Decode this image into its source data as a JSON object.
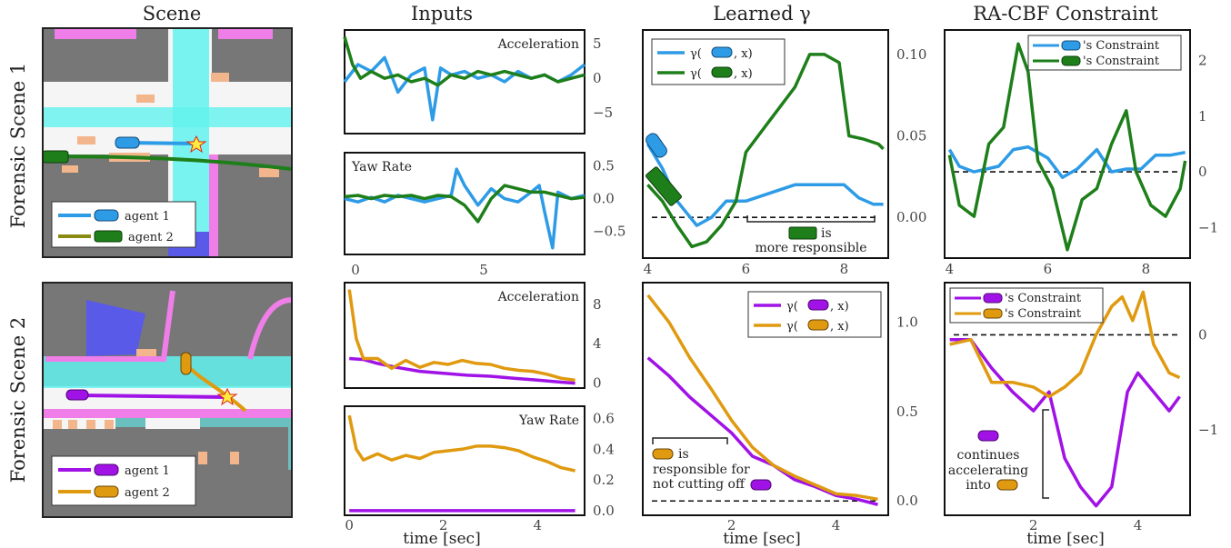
{
  "column_titles": [
    "Scene",
    "Inputs",
    "Learned γ",
    "RA-CBF Constraint"
  ],
  "row_titles": [
    "Forensic Scene 1",
    "Forensic Scene 2"
  ],
  "xlabel": "time [sec]",
  "colors": {
    "blue": "#2e9be6",
    "green": "#1e7f1a",
    "purple": "#a012e6",
    "orange": "#e09a10",
    "ground": "#777777",
    "cyan": "#62f2ee",
    "magenta": "#ef7ee8",
    "road": "#f5f5f5"
  },
  "scene_legends": [
    {
      "items": [
        "agent 1",
        "agent 2"
      ]
    },
    {
      "items": [
        "agent 1",
        "agent 2"
      ]
    }
  ],
  "annotations": {
    "s1_gamma": [
      "is",
      "more responsible"
    ],
    "s2_gamma": [
      "is",
      "responsible for",
      "not cutting off"
    ],
    "s2_cbf": [
      "continues",
      "accelerating",
      "into"
    ]
  },
  "chart_data": [
    {
      "id": "s1_accel",
      "type": "line",
      "title": "Acceleration",
      "xlim": [
        0,
        9
      ],
      "ylim": [
        -8,
        7
      ],
      "yticks": [
        5,
        0,
        -5
      ],
      "ytick_labels": [
        "5",
        "0",
        "−5"
      ],
      "series": [
        {
          "color": "blue",
          "x": [
            0,
            0.5,
            1,
            1.5,
            2,
            2.5,
            3,
            3.3,
            3.6,
            4,
            4.5,
            5,
            5.5,
            6,
            6.5,
            7,
            7.5,
            8,
            8.5,
            9
          ],
          "y": [
            -0.5,
            2,
            1,
            3,
            -2,
            0.5,
            1.5,
            -6,
            1.5,
            0.5,
            1,
            0,
            0.5,
            -0.5,
            1,
            0,
            0.5,
            -0.5,
            0.5,
            2
          ]
        },
        {
          "color": "green",
          "x": [
            0,
            0.3,
            0.6,
            1,
            1.5,
            2,
            2.5,
            3,
            3.5,
            4,
            4.5,
            5,
            5.5,
            6,
            6.5,
            7,
            7.5,
            8,
            8.5,
            9
          ],
          "y": [
            6,
            2,
            0,
            1,
            0,
            0.5,
            -0.5,
            0,
            -1,
            0.5,
            0,
            1,
            0.5,
            1,
            0.5,
            0,
            0.5,
            -0.5,
            0,
            0.5
          ]
        }
      ]
    },
    {
      "id": "s1_yaw",
      "type": "line",
      "title": "Yaw Rate",
      "xlim": [
        0,
        9
      ],
      "ylim": [
        -0.85,
        0.7
      ],
      "yticks": [
        0.5,
        0.0,
        -0.5
      ],
      "ytick_labels": [
        "0.5",
        "0.0",
        "−0.5"
      ],
      "series": [
        {
          "color": "blue",
          "x": [
            0,
            0.5,
            1,
            1.5,
            2,
            2.5,
            3,
            3.5,
            4,
            4.2,
            4.5,
            5,
            5.5,
            6,
            6.5,
            7,
            7.3,
            7.5,
            7.8,
            8,
            8.5,
            9
          ],
          "y": [
            0,
            -0.05,
            0.02,
            -0.05,
            0.05,
            0,
            -0.05,
            0,
            0.05,
            0.45,
            0.2,
            -0.1,
            0.15,
            0,
            -0.05,
            0.1,
            0.2,
            -0.2,
            -0.75,
            0.1,
            0,
            0.05
          ]
        },
        {
          "color": "green",
          "x": [
            0,
            0.5,
            1,
            1.5,
            2,
            2.5,
            3,
            3.5,
            4,
            4.5,
            5,
            5.5,
            6,
            6.5,
            7,
            7.5,
            8,
            8.5,
            9
          ],
          "y": [
            0.03,
            0.05,
            0,
            0.05,
            0.03,
            0.05,
            0,
            0.05,
            0.03,
            -0.1,
            -0.35,
            0,
            0.2,
            0.15,
            0.1,
            0.1,
            0.05,
            0,
            0.02
          ]
        }
      ]
    },
    {
      "id": "s1_gamma",
      "type": "line",
      "xlim": [
        3.9,
        8.9
      ],
      "ylim": [
        -0.025,
        0.115
      ],
      "xticks": [
        4,
        6,
        8
      ],
      "yticks": [
        0.1,
        0.05,
        0.0
      ],
      "ytick_labels": [
        "0.10",
        "0.05",
        "0.00"
      ],
      "legend": [
        "γ(",
        ", x)"
      ],
      "threshold": 0.0,
      "series": [
        {
          "color": "blue",
          "x": [
            4,
            4.3,
            4.6,
            5,
            5.3,
            5.6,
            6,
            6.5,
            7,
            7.5,
            8,
            8.3,
            8.6,
            8.8
          ],
          "y": [
            0.045,
            0.03,
            0.01,
            -0.005,
            0.0,
            0.01,
            0.01,
            0.015,
            0.02,
            0.02,
            0.02,
            0.012,
            0.008,
            0.008
          ]
        },
        {
          "color": "green",
          "x": [
            4,
            4.3,
            4.6,
            4.9,
            5.2,
            5.5,
            5.8,
            6,
            6.5,
            7,
            7.3,
            7.6,
            7.9,
            8.1,
            8.4,
            8.7,
            8.8
          ],
          "y": [
            0.02,
            0.01,
            -0.005,
            -0.018,
            -0.015,
            -0.005,
            0.01,
            0.04,
            0.06,
            0.08,
            0.1,
            0.1,
            0.095,
            0.05,
            0.048,
            0.045,
            0.042
          ]
        }
      ]
    },
    {
      "id": "s1_cbf",
      "type": "line",
      "xlim": [
        3.9,
        8.9
      ],
      "ylim": [
        -1.55,
        2.55
      ],
      "xticks": [
        4,
        6,
        8
      ],
      "yticks": [
        2,
        1,
        0,
        -1
      ],
      "ytick_labels": [
        "2",
        "1",
        "0",
        "−1"
      ],
      "legend": [
        "'s Constraint",
        "'s Constraint"
      ],
      "threshold": 0.0,
      "series": [
        {
          "color": "blue",
          "x": [
            4,
            4.2,
            4.5,
            5,
            5.3,
            5.6,
            6,
            6.3,
            6.6,
            7,
            7.3,
            7.6,
            7.9,
            8.2,
            8.5,
            8.8
          ],
          "y": [
            0.4,
            0.1,
            0,
            0.1,
            0.4,
            0.45,
            0.25,
            -0.1,
            0.05,
            0.4,
            0,
            0.05,
            0.05,
            0.3,
            0.3,
            0.35
          ]
        },
        {
          "color": "green",
          "x": [
            4,
            4.2,
            4.5,
            4.8,
            5.1,
            5.4,
            5.6,
            5.8,
            6.1,
            6.4,
            6.7,
            7,
            7.3,
            7.6,
            7.8,
            8.1,
            8.4,
            8.7,
            8.8
          ],
          "y": [
            0.3,
            -0.6,
            -0.8,
            0.5,
            0.8,
            2.3,
            1.8,
            0.2,
            -0.3,
            -1.4,
            -0.5,
            -0.3,
            0.5,
            1.1,
            0,
            -0.6,
            -0.8,
            -0.3,
            0.2
          ]
        }
      ]
    },
    {
      "id": "s2_accel",
      "type": "line",
      "title": "Acceleration",
      "xlim": [
        -0.1,
        5.0
      ],
      "ylim": [
        -0.5,
        10.2
      ],
      "yticks": [
        8,
        4,
        0
      ],
      "ytick_labels": [
        "8",
        "4",
        "0"
      ],
      "series": [
        {
          "color": "purple",
          "x": [
            0,
            0.3,
            0.6,
            1,
            1.5,
            2,
            2.5,
            3,
            3.5,
            4,
            4.5,
            4.8
          ],
          "y": [
            2.5,
            2.4,
            2.0,
            1.6,
            1.2,
            1.0,
            0.8,
            0.7,
            0.5,
            0.3,
            0.1,
            0.0
          ]
        },
        {
          "color": "orange",
          "x": [
            0,
            0.15,
            0.3,
            0.6,
            0.9,
            1.2,
            1.5,
            1.8,
            2.1,
            2.4,
            2.7,
            3,
            3.3,
            3.6,
            3.9,
            4.2,
            4.5,
            4.8
          ],
          "y": [
            9.5,
            4.5,
            2.5,
            2.5,
            1.5,
            2.3,
            1.6,
            2.1,
            1.9,
            2.3,
            2.0,
            1.9,
            1.5,
            1.3,
            1.2,
            0.9,
            0.5,
            0.3
          ]
        }
      ]
    },
    {
      "id": "s2_yaw",
      "type": "line",
      "title": "Yaw Rate",
      "xlim": [
        -0.1,
        5.0
      ],
      "ylim": [
        -0.03,
        0.68
      ],
      "yticks": [
        0.6,
        0.4,
        0.2,
        0.0
      ],
      "ytick_labels": [
        "0.6",
        "0.4",
        "0.2",
        "0.0"
      ],
      "series": [
        {
          "color": "purple",
          "x": [
            0,
            4.8
          ],
          "y": [
            0.0,
            0.0
          ]
        },
        {
          "color": "orange",
          "x": [
            0,
            0.15,
            0.3,
            0.6,
            0.9,
            1.2,
            1.5,
            1.8,
            2.1,
            2.4,
            2.7,
            3,
            3.3,
            3.6,
            3.9,
            4.2,
            4.5,
            4.8
          ],
          "y": [
            0.62,
            0.4,
            0.33,
            0.37,
            0.33,
            0.36,
            0.34,
            0.38,
            0.39,
            0.4,
            0.42,
            0.42,
            0.41,
            0.39,
            0.35,
            0.32,
            0.28,
            0.26
          ]
        }
      ]
    },
    {
      "id": "s2_gamma",
      "type": "line",
      "xlim": [
        0.3,
        5.0
      ],
      "ylim": [
        -0.08,
        1.22
      ],
      "xticks": [
        2,
        4
      ],
      "yticks": [
        1.0,
        0.5,
        0.0
      ],
      "ytick_labels": [
        "1.0",
        "0.5",
        "0.0"
      ],
      "legend": [
        "γ(",
        ", x)"
      ],
      "threshold": 0.0,
      "series": [
        {
          "color": "purple",
          "x": [
            0.4,
            0.8,
            1.2,
            1.6,
            2,
            2.4,
            2.8,
            3.2,
            3.6,
            4,
            4.4,
            4.8
          ],
          "y": [
            0.8,
            0.7,
            0.58,
            0.48,
            0.38,
            0.25,
            0.2,
            0.12,
            0.08,
            0.03,
            0.01,
            -0.02
          ]
        },
        {
          "color": "orange",
          "x": [
            0.4,
            0.8,
            1.2,
            1.6,
            2,
            2.4,
            2.8,
            3.2,
            3.6,
            4,
            4.4,
            4.8
          ],
          "y": [
            1.15,
            1.0,
            0.8,
            0.63,
            0.45,
            0.3,
            0.2,
            0.14,
            0.09,
            0.04,
            0.03,
            0.01
          ]
        }
      ]
    },
    {
      "id": "s2_cbf",
      "type": "line",
      "xlim": [
        0.3,
        5.0
      ],
      "ylim": [
        -1.9,
        0.55
      ],
      "xticks": [
        2,
        4
      ],
      "yticks": [
        0,
        -1
      ],
      "ytick_labels": [
        "0",
        "−1"
      ],
      "legend": [
        "'s Constraint",
        "'s Constraint"
      ],
      "threshold": 0.0,
      "series": [
        {
          "color": "purple",
          "x": [
            0.4,
            0.8,
            1.2,
            1.6,
            2,
            2.3,
            2.6,
            2.9,
            3.2,
            3.5,
            3.8,
            4,
            4.3,
            4.6,
            4.8
          ],
          "y": [
            -0.05,
            -0.05,
            -0.35,
            -0.6,
            -0.8,
            -0.6,
            -1.3,
            -1.6,
            -1.8,
            -1.6,
            -0.6,
            -0.4,
            -0.6,
            -0.8,
            -0.65
          ]
        },
        {
          "color": "orange",
          "x": [
            0.4,
            0.8,
            1.2,
            1.6,
            2,
            2.3,
            2.6,
            2.9,
            3.2,
            3.5,
            3.7,
            3.9,
            4.1,
            4.3,
            4.6,
            4.8
          ],
          "y": [
            -0.1,
            -0.05,
            -0.5,
            -0.5,
            -0.55,
            -0.65,
            -0.55,
            -0.4,
            0.0,
            0.3,
            0.4,
            0.15,
            0.45,
            -0.1,
            -0.4,
            -0.45
          ]
        }
      ]
    }
  ]
}
